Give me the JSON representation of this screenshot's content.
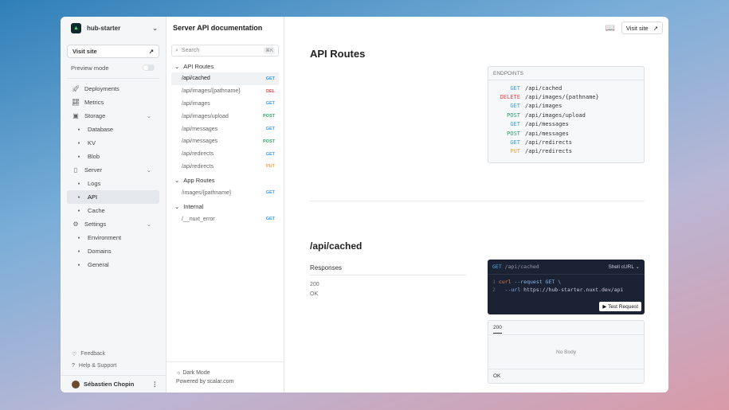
{
  "sidebar": {
    "project": "hub-starter",
    "visit_site": "Visit site",
    "preview_mode": "Preview mode",
    "preview_enabled": false,
    "items": [
      {
        "label": "Deployments",
        "icon": "rocket-icon",
        "level": 0
      },
      {
        "label": "Metrics",
        "icon": "chart-icon",
        "level": 0
      },
      {
        "label": "Storage",
        "icon": "storage-icon",
        "level": 0,
        "expandable": true
      },
      {
        "label": "Database",
        "level": 1
      },
      {
        "label": "KV",
        "level": 1
      },
      {
        "label": "Blob",
        "level": 1
      },
      {
        "label": "Server",
        "icon": "server-icon",
        "level": 0,
        "expandable": true
      },
      {
        "label": "Logs",
        "level": 1
      },
      {
        "label": "API",
        "level": 1,
        "active": true
      },
      {
        "label": "Cache",
        "level": 1
      },
      {
        "label": "Settings",
        "icon": "gear-icon",
        "level": 0,
        "expandable": true
      },
      {
        "label": "Environment",
        "level": 1
      },
      {
        "label": "Domains",
        "level": 1
      },
      {
        "label": "General",
        "level": 1
      }
    ],
    "feedback": "Feedback",
    "help": "Help & Support",
    "user": "Sébastien Chopin"
  },
  "header": {
    "title": "Server API documentation",
    "visit_site": "Visit site"
  },
  "nav": {
    "search_placeholder": "Search",
    "shortcut": "⌘K",
    "groups": [
      {
        "label": "API Routes",
        "routes": [
          {
            "path": "/api/cached",
            "method": "GET",
            "active": true
          },
          {
            "path": "/api/images/{pathname}",
            "method": "DEL"
          },
          {
            "path": "/api/images",
            "method": "GET"
          },
          {
            "path": "/api/images/upload",
            "method": "POST"
          },
          {
            "path": "/api/messages",
            "method": "GET"
          },
          {
            "path": "/api/messages",
            "method": "POST"
          },
          {
            "path": "/api/redirects",
            "method": "GET"
          },
          {
            "path": "/api/redirects",
            "method": "PUT"
          }
        ]
      },
      {
        "label": "App Routes",
        "routes": [
          {
            "path": "/images/{pathname}",
            "method": "GET"
          }
        ]
      },
      {
        "label": "Internal",
        "routes": [
          {
            "path": "/__nuxt_error",
            "method": "GET"
          }
        ]
      }
    ],
    "dark_mode": "Dark Mode",
    "powered": "Powered by scalar.com"
  },
  "colors": {
    "GET": "#3b9ddd",
    "DEL": "#e5484d",
    "DELETE": "#e5484d",
    "POST": "#30a46c",
    "PUT": "#f5a142"
  },
  "main": {
    "heading": "API Routes",
    "endpoints_label": "ENDPOINTS",
    "endpoints": [
      {
        "method": "GET",
        "path": "/api/cached"
      },
      {
        "method": "DELETE",
        "path": "/api/images/{pathname}"
      },
      {
        "method": "GET",
        "path": "/api/images"
      },
      {
        "method": "POST",
        "path": "/api/images/upload"
      },
      {
        "method": "GET",
        "path": "/api/messages"
      },
      {
        "method": "POST",
        "path": "/api/messages"
      },
      {
        "method": "GET",
        "path": "/api/redirects"
      },
      {
        "method": "PUT",
        "path": "/api/redirects"
      }
    ],
    "op_title": "/api/cached",
    "responses_label": "Responses",
    "resp_code": "200",
    "resp_desc": "OK",
    "code": {
      "method": "GET",
      "path": "/api/cached",
      "lang": "Shell cURL",
      "line1_no": "1",
      "line1_cmd": "curl",
      "line1_rest": "--request GET \\",
      "line2_no": "2",
      "line2_flag": "--url",
      "line2_rest": "https://hub-starter.nuxt.dev/api",
      "test": "Test Request"
    },
    "resp_tab": "200",
    "no_body": "No Body",
    "ok": "OK"
  }
}
